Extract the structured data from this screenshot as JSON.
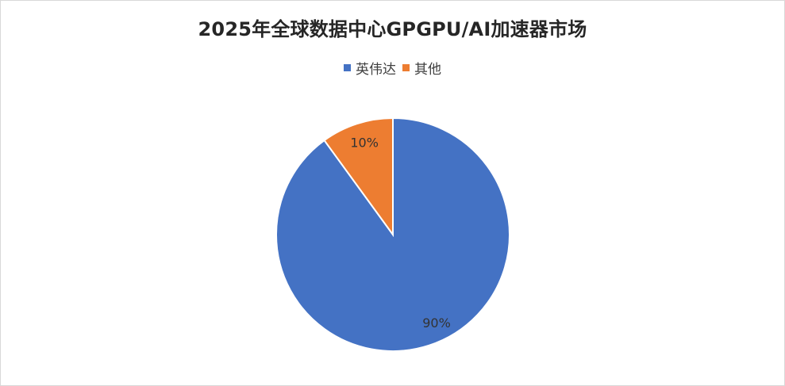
{
  "chart_data": {
    "type": "pie",
    "title": "2025年全球数据中心GPGPU/AI加速器市场",
    "legend_position": "top",
    "categories": [
      "英伟达",
      "其他"
    ],
    "values": [
      90,
      10
    ],
    "data_labels": [
      "90%",
      "10%"
    ],
    "colors": [
      "#4472C4",
      "#ED7D31"
    ]
  }
}
